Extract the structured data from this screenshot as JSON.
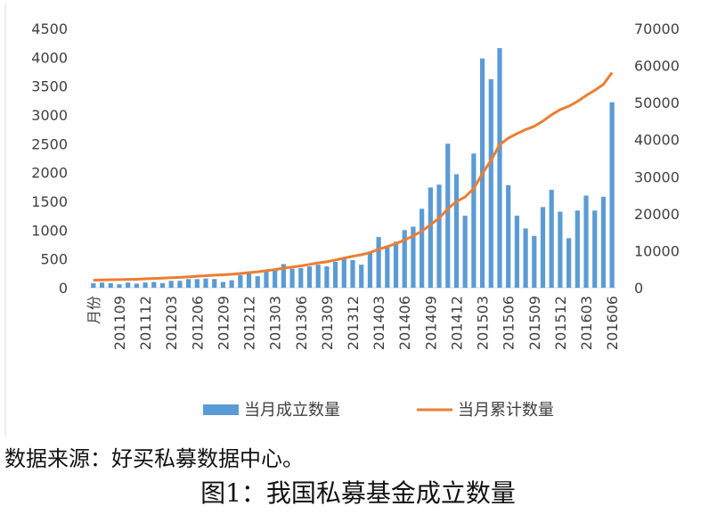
{
  "chart_data": {
    "type": "bar_line",
    "categories": [
      "月份",
      null,
      null,
      "201109",
      null,
      null,
      "201112",
      null,
      null,
      "201203",
      null,
      null,
      "201206",
      null,
      null,
      "201209",
      null,
      null,
      "201212",
      null,
      null,
      "201303",
      null,
      null,
      "201306",
      null,
      null,
      "201309",
      null,
      null,
      "201312",
      null,
      null,
      "201403",
      null,
      null,
      "201406",
      null,
      null,
      "201409",
      null,
      null,
      "201412",
      null,
      null,
      "201503",
      null,
      null,
      "201506",
      null,
      null,
      "201509",
      null,
      null,
      "201512",
      null,
      null,
      "201603",
      null,
      null,
      "201606"
    ],
    "series": [
      {
        "name": "当月成立数量",
        "color": "#5b9bd5",
        "type": "bar",
        "values": [
          80,
          90,
          80,
          60,
          90,
          70,
          90,
          100,
          80,
          120,
          120,
          150,
          150,
          160,
          150,
          100,
          130,
          220,
          250,
          200,
          300,
          330,
          410,
          330,
          340,
          370,
          400,
          370,
          450,
          500,
          480,
          400,
          620,
          880,
          720,
          800,
          1000,
          1060,
          1370,
          1740,
          1790,
          2500,
          1970,
          1250,
          2330,
          3980,
          3620,
          4160,
          1780,
          1250,
          1030,
          900,
          1400,
          1700,
          1320,
          860,
          1340,
          1600,
          1340,
          1580,
          3220
        ]
      },
      {
        "name": "当月累计数量",
        "color": "#ed7d31",
        "type": "line",
        "axis": "y2",
        "values": [
          2000,
          2100,
          2150,
          2200,
          2250,
          2300,
          2400,
          2500,
          2600,
          2700,
          2800,
          2950,
          3100,
          3250,
          3400,
          3500,
          3650,
          3850,
          4100,
          4300,
          4600,
          4900,
          5300,
          5600,
          5900,
          6300,
          6700,
          7000,
          7500,
          8000,
          8500,
          8900,
          9500,
          10400,
          11100,
          11900,
          12900,
          14000,
          15300,
          17000,
          18800,
          21300,
          23300,
          24500,
          26800,
          30800,
          34400,
          38600,
          40400,
          41600,
          42700,
          43600,
          45000,
          46700,
          48100,
          49000,
          50300,
          51900,
          53300,
          54900,
          58100
        ]
      }
    ],
    "ylim": [
      0,
      4500
    ],
    "yticks": [
      0,
      500,
      1000,
      1500,
      2000,
      2500,
      3000,
      3500,
      4000,
      4500
    ],
    "y2lim": [
      0,
      70000
    ],
    "y2ticks": [
      0,
      10000,
      20000,
      30000,
      40000,
      50000,
      60000,
      70000
    ],
    "grid": false,
    "legend": "bottom"
  },
  "caption": {
    "source": "数据来源：好买私募数据中心。",
    "figure": "图1：我国私募基金成立数量"
  }
}
